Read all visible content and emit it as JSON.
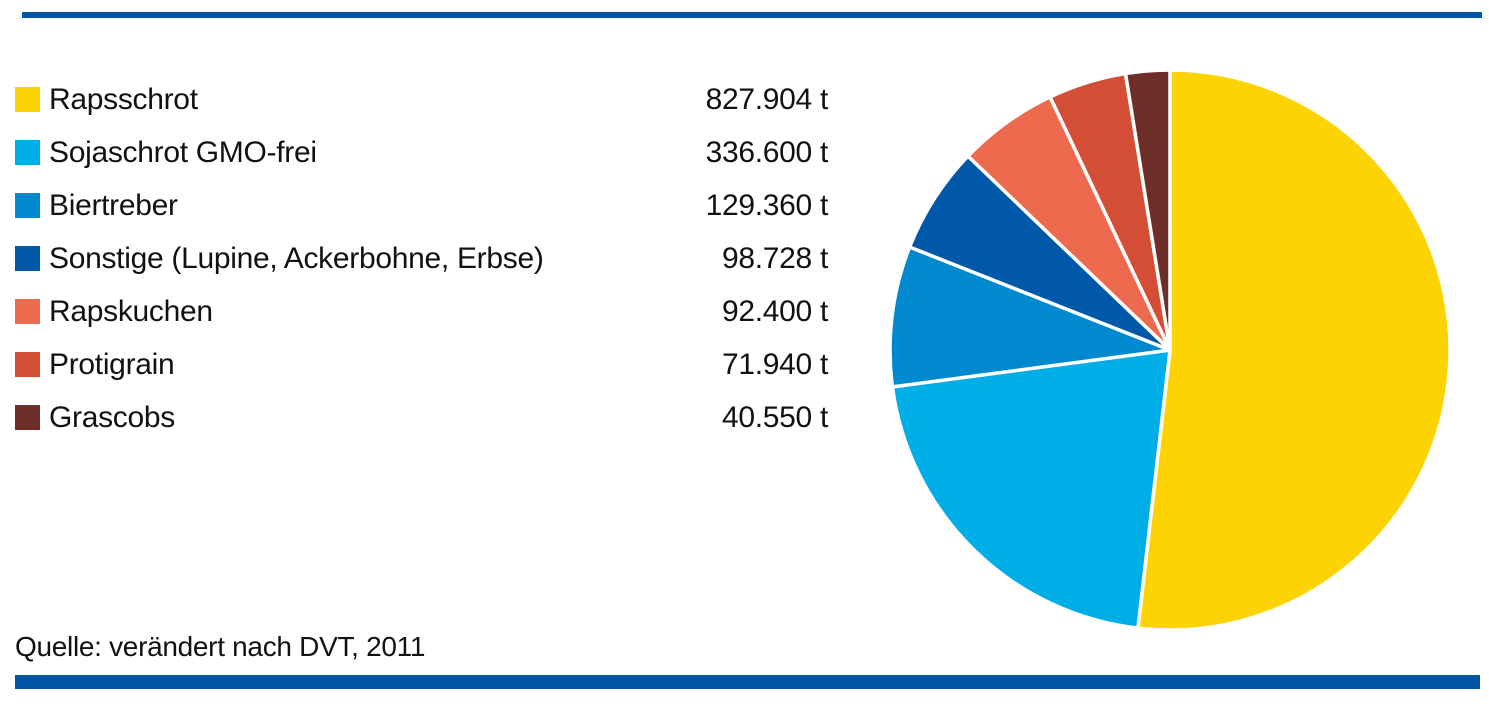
{
  "chart_data": {
    "type": "pie",
    "unit": "t",
    "categories": [
      "Rapsschrot",
      "Sojaschrot GMO-frei",
      "Biertreber",
      "Sonstige (Lupine, Ackerbohne, Erbse)",
      "Rapskuchen",
      "Protigrain",
      "Grascobs"
    ],
    "values": [
      827904,
      336600,
      129360,
      98728,
      92400,
      71940,
      40550
    ],
    "value_labels": [
      "827.904 t",
      "336.600 t",
      "129.360 t",
      "98.728 t",
      "92.400 t",
      "71.940 t",
      "40.550 t"
    ],
    "colors": [
      "#FDD303",
      "#00AEE7",
      "#0089CE",
      "#0059A8",
      "#ED6A4E",
      "#D44E35",
      "#6E2F2B"
    ],
    "legend_position": "left",
    "start_angle_deg": 0,
    "direction": "clockwise",
    "slice_separator_color": "#FFFFFF"
  },
  "source": {
    "label": "Quelle: verändert nach DVT, 2011"
  },
  "frame": {
    "bar_color": "#0056A4"
  }
}
